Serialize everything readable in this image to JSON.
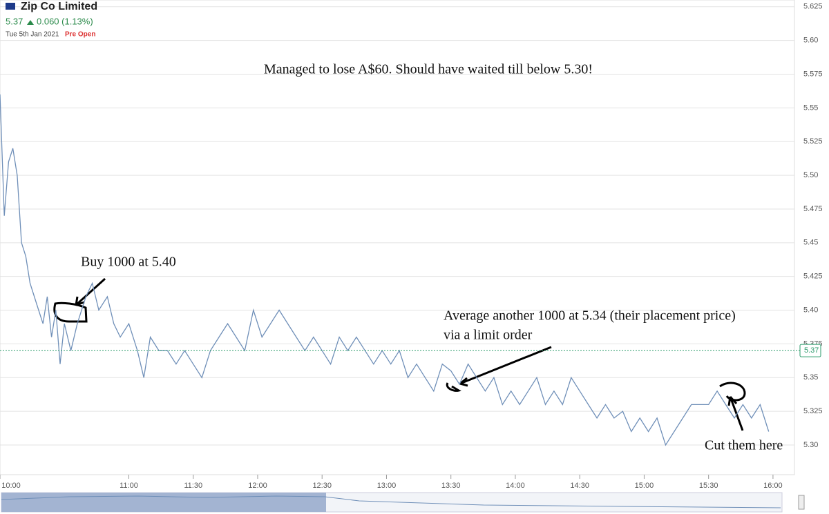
{
  "chart_data": {
    "type": "line",
    "title": "Zip Co Limited",
    "price": 5.37,
    "change": "0.060 (1.13%)",
    "date": "Tue 5th Jan 2021",
    "status": "Pre Open",
    "annotations": [
      "Managed to lose A$60. Should have waited till below 5.30!",
      "Buy 1000 at 5.40",
      "Average another 1000 at 5.34 (their placement price)",
      "via a limit order",
      "Cut them here"
    ],
    "color": "#6f8fb8",
    "x": [
      "10:00",
      "10:02",
      "10:04",
      "10:06",
      "10:08",
      "10:10",
      "10:12",
      "10:14",
      "10:16",
      "10:18",
      "10:20",
      "10:22",
      "10:24",
      "10:26",
      "10:28",
      "10:30",
      "10:33",
      "10:36",
      "10:40",
      "10:43",
      "10:46",
      "10:50",
      "10:53",
      "10:56",
      "11:00",
      "11:04",
      "11:07",
      "11:10",
      "11:14",
      "11:18",
      "11:22",
      "11:26",
      "11:30",
      "11:34",
      "11:38",
      "11:42",
      "11:46",
      "11:50",
      "11:54",
      "11:58",
      "12:02",
      "12:06",
      "12:10",
      "12:14",
      "12:18",
      "12:22",
      "12:26",
      "12:30",
      "12:34",
      "12:38",
      "12:42",
      "12:46",
      "12:50",
      "12:54",
      "12:58",
      "13:02",
      "13:06",
      "13:10",
      "13:14",
      "13:18",
      "13:22",
      "13:26",
      "13:30",
      "13:34",
      "13:38",
      "13:42",
      "13:46",
      "13:50",
      "13:54",
      "13:58",
      "14:02",
      "14:06",
      "14:10",
      "14:14",
      "14:18",
      "14:22",
      "14:26",
      "14:30",
      "14:34",
      "14:38",
      "14:42",
      "14:46",
      "14:50",
      "14:54",
      "14:58",
      "15:02",
      "15:06",
      "15:10",
      "15:14",
      "15:18",
      "15:22",
      "15:26",
      "15:30",
      "15:34",
      "15:38",
      "15:42",
      "15:46",
      "15:50",
      "15:54",
      "15:58"
    ],
    "values": [
      5.56,
      5.47,
      5.51,
      5.52,
      5.5,
      5.45,
      5.44,
      5.42,
      5.41,
      5.4,
      5.39,
      5.41,
      5.38,
      5.4,
      5.36,
      5.39,
      5.37,
      5.39,
      5.41,
      5.42,
      5.4,
      5.41,
      5.39,
      5.38,
      5.39,
      5.37,
      5.35,
      5.38,
      5.37,
      5.37,
      5.36,
      5.37,
      5.36,
      5.35,
      5.37,
      5.38,
      5.39,
      5.38,
      5.37,
      5.4,
      5.38,
      5.39,
      5.4,
      5.39,
      5.38,
      5.37,
      5.38,
      5.37,
      5.36,
      5.38,
      5.37,
      5.38,
      5.37,
      5.36,
      5.37,
      5.36,
      5.37,
      5.35,
      5.36,
      5.35,
      5.34,
      5.36,
      5.355,
      5.345,
      5.36,
      5.35,
      5.34,
      5.35,
      5.33,
      5.34,
      5.33,
      5.34,
      5.35,
      5.33,
      5.34,
      5.33,
      5.35,
      5.34,
      5.33,
      5.32,
      5.33,
      5.32,
      5.325,
      5.31,
      5.32,
      5.31,
      5.32,
      5.3,
      5.31,
      5.32,
      5.33,
      5.33,
      5.33,
      5.34,
      5.33,
      5.32,
      5.33,
      5.32,
      5.33,
      5.31
    ],
    "xlim": [
      "10:00",
      "16:10"
    ],
    "xticks": [
      "10:00",
      "11:00",
      "11:30",
      "12:00",
      "12:30",
      "13:00",
      "13:30",
      "14:00",
      "14:30",
      "15:00",
      "15:30",
      "16:00"
    ],
    "ylim": [
      5.278,
      5.63
    ],
    "yticks": [
      {
        "value": 5.3,
        "label": "5.30"
      },
      5.325,
      5.35,
      5.375,
      {
        "value": 5.4,
        "label": "5.40"
      },
      5.425,
      5.45,
      5.475,
      {
        "value": 5.5,
        "label": "5.50"
      },
      5.525,
      5.55,
      5.575,
      {
        "value": 5.6,
        "label": "5.60"
      },
      5.625
    ],
    "grid": true
  }
}
